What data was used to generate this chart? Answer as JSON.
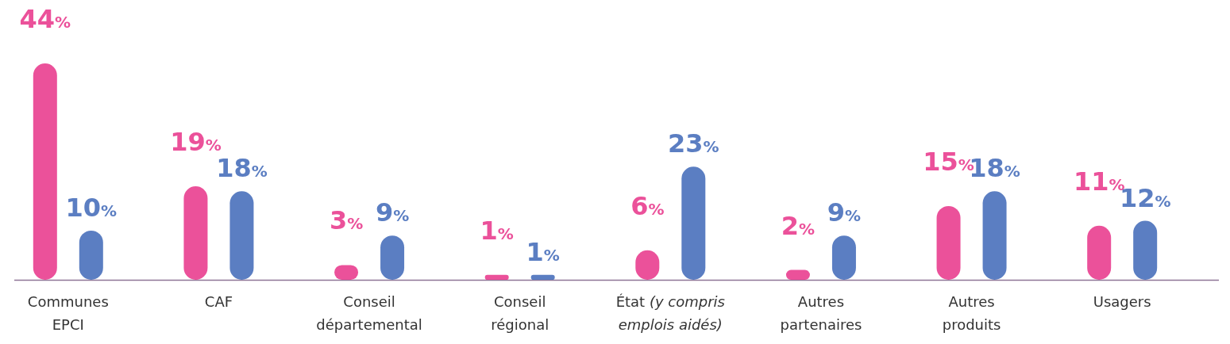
{
  "chart_data": {
    "type": "bar",
    "categories": [
      "Communes\nEPCI",
      "CAF",
      "Conseil\ndépartemental",
      "Conseil\nrégional",
      "État (y compris\nemplois aidés)",
      "Autres\npartenaires",
      "Autres\nproduits",
      "Usagers"
    ],
    "series": [
      {
        "color": "#eb519a",
        "values": [
          44,
          19,
          3,
          1,
          6,
          2,
          15,
          11
        ],
        "value_labels": [
          "44%",
          "19%",
          "3%",
          "1%",
          "6%",
          "2%",
          "15%",
          "11%"
        ]
      },
      {
        "color": "#5b7ec2",
        "values": [
          10,
          18,
          9,
          1,
          23,
          9,
          18,
          12
        ],
        "value_labels": [
          "10%",
          "18%",
          "9%",
          "1%",
          "23%",
          "9%",
          "18%",
          "12%"
        ]
      }
    ]
  }
}
